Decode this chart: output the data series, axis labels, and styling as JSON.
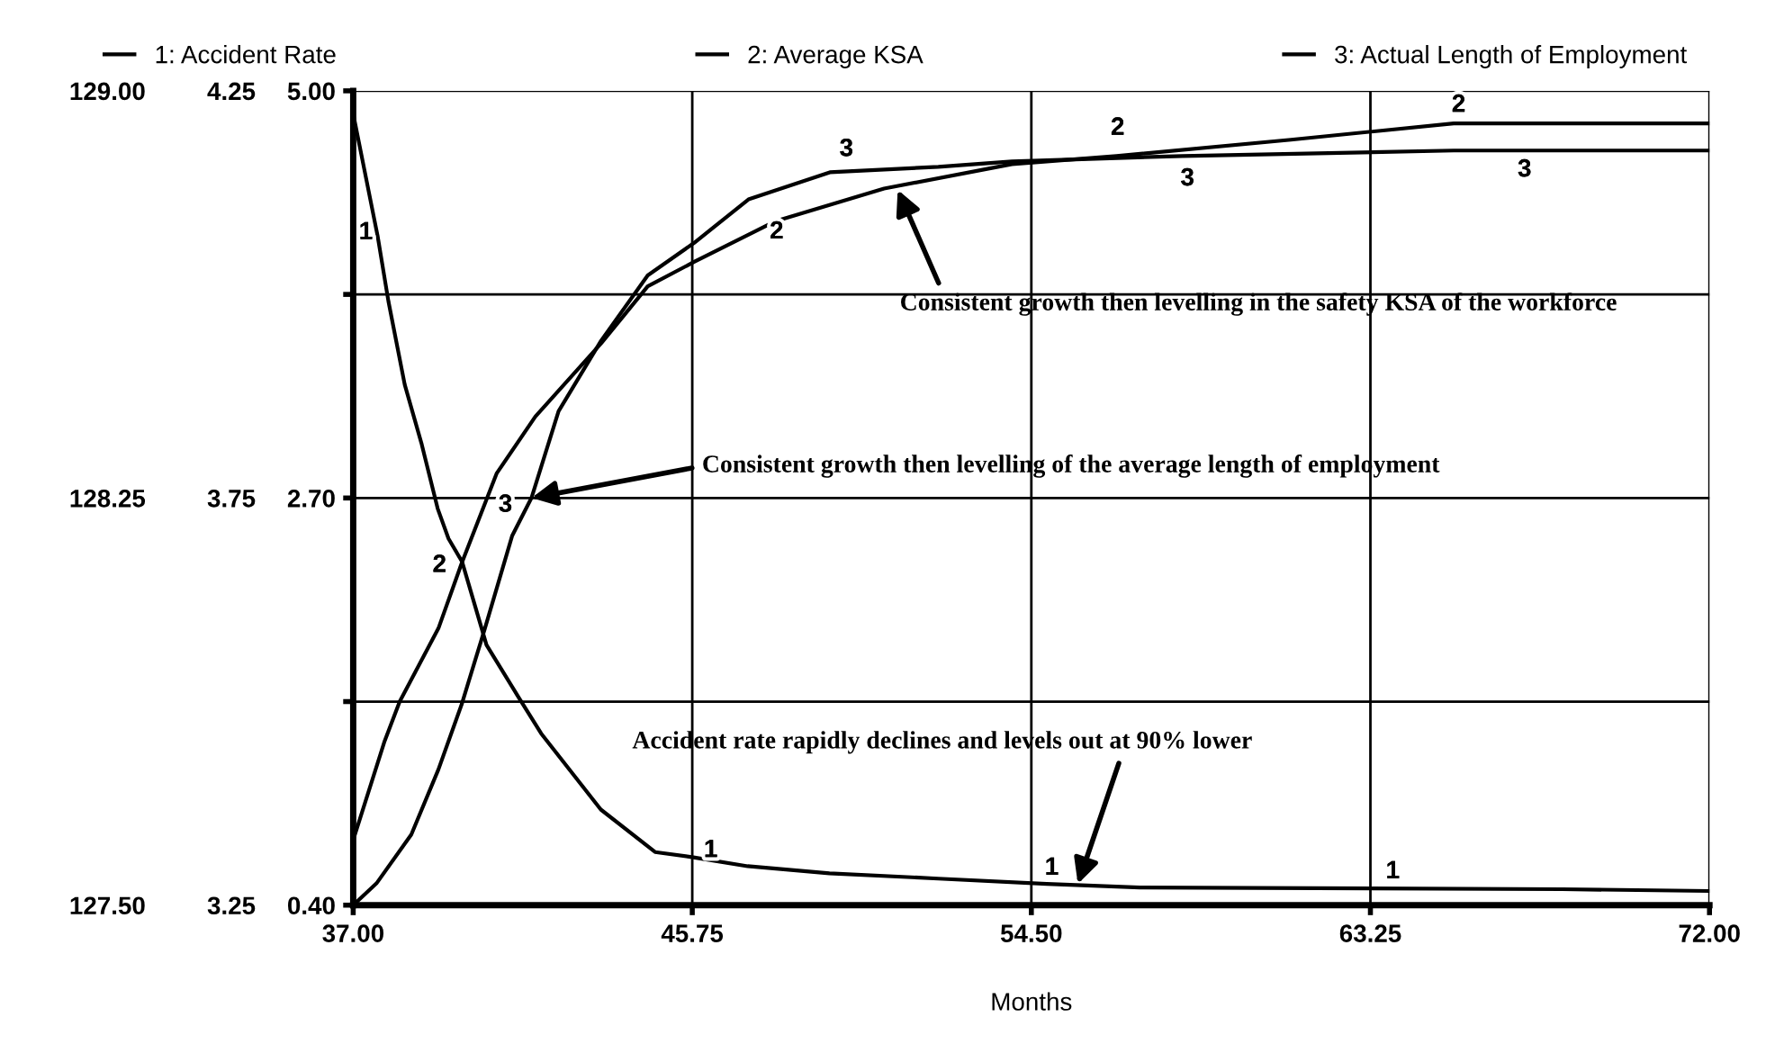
{
  "chart_data": {
    "type": "line",
    "xlabel": "Months",
    "x": [
      37.0,
      37.63,
      37.91,
      38.33,
      38.76,
      39.18,
      39.46,
      39.81,
      40.44,
      41.28,
      41.85,
      43.39,
      44.79,
      45.78,
      47.18,
      49.29,
      52.1,
      54.9,
      57.3,
      68.2,
      72.0
    ],
    "xlim": [
      37.0,
      72.0
    ],
    "xticks": [
      {
        "value": 37.0,
        "label": "37.00"
      },
      {
        "value": 45.75,
        "label": "45.75"
      },
      {
        "value": 54.5,
        "label": "54.50"
      },
      {
        "value": 63.25,
        "label": "63.25"
      },
      {
        "value": 72.0,
        "label": "72.00"
      }
    ],
    "ylim": [
      0.4,
      5.0
    ],
    "yticks": [
      {
        "value": 0.4,
        "label": "0.40"
      },
      {
        "value": 1.55,
        "label": null
      },
      {
        "value": 2.7,
        "label": "2.70"
      },
      {
        "value": 3.85,
        "label": null
      },
      {
        "value": 5.0,
        "label": "5.00"
      }
    ],
    "y2lim": [
      3.25,
      4.25
    ],
    "y2ticks": [
      {
        "value": 3.25,
        "label": "3.25"
      },
      {
        "value": 3.75,
        "label": "3.75"
      },
      {
        "value": 4.25,
        "label": "4.25"
      }
    ],
    "y3lim": [
      127.5,
      129.0
    ],
    "y3ticks": [
      {
        "value": 127.5,
        "label": "127.50"
      },
      {
        "value": 128.25,
        "label": "128.25"
      },
      {
        "value": 129.0,
        "label": "129.00"
      }
    ],
    "grid": true,
    "legend": "top",
    "marker": "none",
    "line_style": "solid",
    "series": [
      {
        "name": "1: Accident Rate",
        "color": "#000000",
        "values": [
          4.87,
          4.18,
          3.81,
          3.34,
          3.01,
          2.64,
          2.47,
          2.34,
          1.87,
          1.57,
          1.37,
          0.94,
          0.7,
          0.67,
          0.62,
          0.58,
          0.55,
          0.52,
          0.5,
          0.49,
          0.48
        ]
      },
      {
        "name": "2: Average KSA",
        "color": "#000000",
        "axis": "y2",
        "x": [
          37.0,
          37.8,
          38.2,
          39.2,
          39.8,
          40.7,
          41.7,
          43.4,
          44.6,
          45.8,
          47.9,
          50.7,
          54.0,
          56.7,
          61.2,
          65.4,
          67.5,
          72.0
        ],
        "values": [
          3.33,
          3.45,
          3.5,
          3.59,
          3.67,
          3.78,
          3.85,
          3.94,
          4.01,
          4.04,
          4.09,
          4.13,
          4.16,
          4.17,
          4.19,
          4.21,
          4.21,
          4.21
        ]
      },
      {
        "name": "3: Actual Length of Employment",
        "color": "#000000",
        "axis": "y3",
        "x": [
          37.0,
          37.6,
          38.5,
          39.2,
          39.8,
          40.4,
          41.1,
          41.6,
          42.3,
          43.4,
          44.6,
          45.8,
          47.2,
          49.3,
          52.1,
          54.0,
          58.4,
          65.4,
          72.0
        ],
        "values": [
          127.5,
          127.54,
          127.63,
          127.75,
          127.87,
          128.01,
          128.18,
          128.25,
          128.41,
          128.54,
          128.66,
          128.72,
          128.8,
          128.85,
          128.86,
          128.87,
          128.88,
          128.89,
          128.89
        ]
      }
    ],
    "annotations": [
      "Consistent growth then levelling in the safety KSA of the workforce",
      {
        "text": "Consistent growth then levelling of the average length of employment",
        "x": 41.6,
        "y": 2.7
      },
      {
        "text": "Accident rate rapidly declines and levels out at 90% lower",
        "x": 55.7,
        "y": 0.52
      },
      {
        "text": "1",
        "x": 37.7,
        "y": 4.09
      },
      {
        "text": "1",
        "x": 46.6,
        "y": 0.6
      },
      {
        "text": "1",
        "x": 55.4,
        "y": 0.5
      },
      {
        "text": "1",
        "x": 64.2,
        "y": 0.48
      },
      {
        "text": "2",
        "x": 39.6,
        "y": 2.21
      },
      {
        "text": "2",
        "x": 48.3,
        "y": 4.31
      },
      {
        "text": "2",
        "x": 57.1,
        "y": 4.68
      },
      {
        "text": "2",
        "x": 65.9,
        "y": 4.81
      },
      {
        "text": "3",
        "x": 41.3,
        "y": 2.55
      },
      {
        "text": "3",
        "x": 50.1,
        "y": 4.56
      },
      {
        "text": "3",
        "x": 58.9,
        "y": 4.61
      },
      {
        "text": "3",
        "x": 67.6,
        "y": 4.66
      }
    ]
  }
}
